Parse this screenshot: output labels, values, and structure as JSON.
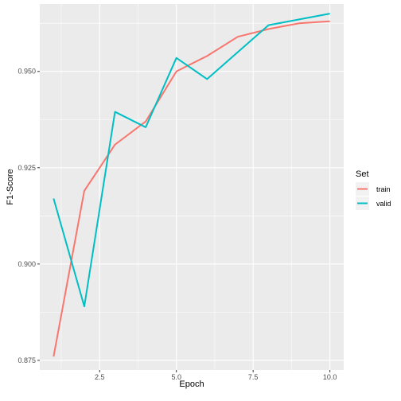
{
  "chart_data": {
    "type": "line",
    "title": "",
    "xlabel": "Epoch",
    "ylabel": "F1-Score",
    "xlim": [
      0.55,
      10.45
    ],
    "ylim": [
      0.8725,
      0.9675
    ],
    "x_ticks": [
      2.5,
      5.0,
      7.5,
      10.0
    ],
    "x_tick_labels": [
      "2.5",
      "5.0",
      "7.5",
      "10.0"
    ],
    "y_ticks": [
      0.875,
      0.9,
      0.925,
      0.95
    ],
    "y_tick_labels": [
      "0.875",
      "0.900",
      "0.925",
      "0.950"
    ],
    "grid": true,
    "legend": {
      "title": "Set",
      "position": "right"
    },
    "x": [
      1,
      2,
      3,
      4,
      5,
      6,
      7,
      8,
      9,
      10
    ],
    "series": [
      {
        "name": "train",
        "color": "#F8766D",
        "values": [
          0.876,
          0.919,
          0.931,
          0.937,
          0.95,
          0.954,
          0.959,
          0.961,
          0.9625,
          0.963
        ]
      },
      {
        "name": "valid",
        "color": "#00BFC4",
        "values": [
          0.917,
          0.889,
          0.9395,
          0.9355,
          0.9535,
          0.948,
          0.955,
          0.962,
          0.9635,
          0.965
        ]
      }
    ]
  }
}
